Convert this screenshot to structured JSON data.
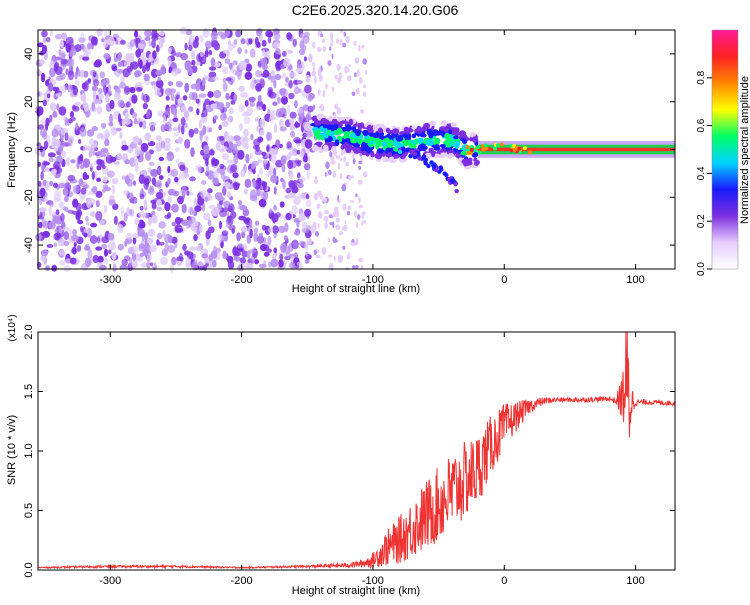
{
  "title": "C2E6.2025.320.14.20.G06",
  "chart_data": [
    {
      "type": "heatmap",
      "xlabel": "Height of straight line (km)",
      "ylabel": "Frequency (Hz)",
      "xlim": [
        -355,
        130
      ],
      "ylim": [
        -50,
        50
      ],
      "xticks": [
        -300,
        -200,
        -100,
        0,
        100
      ],
      "yticks": [
        -40,
        -20,
        0,
        20,
        40
      ],
      "xtick_labels": [
        "-300",
        "-200",
        "-100",
        "0",
        "100"
      ],
      "ytick_labels": [
        "-40",
        "-20",
        "0",
        "20",
        "40"
      ],
      "colorbar": {
        "label": "Normalized spectral amplitude",
        "range": [
          0,
          1
        ],
        "ticks": [
          0.0,
          0.2,
          0.4,
          0.6,
          0.8
        ],
        "tick_labels": [
          "0.0",
          "0.2",
          "0.4",
          "0.6",
          "0.8"
        ],
        "colors": [
          "#ffffff",
          "#e6ccff",
          "#7b2fe0",
          "#1a1aff",
          "#00d4ff",
          "#00ff66",
          "#ffff00",
          "#ff8800",
          "#ff2222",
          "#ff1a99"
        ]
      },
      "regions": [
        {
          "x": [
            -355,
            -145
          ],
          "freq": [
            -50,
            50
          ],
          "amplitude": 0.12,
          "pattern": "scattered noise"
        },
        {
          "x": [
            -145,
            -105
          ],
          "freq": [
            -50,
            50
          ],
          "amplitude": 0.05,
          "pattern": "sparse noise"
        },
        {
          "x": [
            -145,
            -20
          ],
          "freq": [
            -20,
            12
          ],
          "amplitude": 0.45,
          "pattern": "signal band"
        },
        {
          "x": [
            -20,
            130
          ],
          "freq": [
            -2,
            2
          ],
          "amplitude": 0.9,
          "pattern": "carrier line"
        }
      ],
      "track": {
        "x": [
          -145,
          -120,
          -100,
          -80,
          -60,
          -40,
          -30,
          -20,
          -10,
          0,
          20,
          50,
          85,
          100,
          130
        ],
        "freq": [
          7,
          6,
          3,
          2,
          4,
          4,
          0,
          0,
          1,
          1,
          0,
          0,
          0,
          0,
          0
        ],
        "branch": {
          "x": [
            -80,
            -65,
            -50,
            -40,
            -35
          ],
          "freq": [
            0,
            -3,
            -8,
            -13,
            -17
          ]
        }
      }
    },
    {
      "type": "line",
      "xlabel": "Height of straight line (km)",
      "ylabel": "SNR (10 * v/v)",
      "yunit": "(x10⁴)",
      "xlim": [
        -355,
        130
      ],
      "ylim": [
        0,
        2.0
      ],
      "xticks": [
        -300,
        -200,
        -100,
        0,
        100
      ],
      "yticks": [
        0.0,
        0.5,
        1.0,
        1.5,
        2.0
      ],
      "xtick_labels": [
        "-300",
        "-200",
        "-100",
        "0",
        "100"
      ],
      "ytick_labels": [
        "0.0",
        "0.5",
        "1.0",
        "1.5",
        "2.0"
      ],
      "color": "#ee3333",
      "series": [
        {
          "x": [
            -355,
            -300,
            -250,
            -200,
            -150,
            -120,
            -110,
            -100,
            -90,
            -80,
            -70,
            -60,
            -50,
            -40,
            -30,
            -20,
            -10,
            0,
            10,
            20,
            30,
            40,
            60,
            80,
            85,
            90,
            93,
            95,
            97,
            100,
            110,
            130
          ],
          "values": [
            0.02,
            0.03,
            0.03,
            0.02,
            0.03,
            0.04,
            0.05,
            0.08,
            0.18,
            0.25,
            0.35,
            0.45,
            0.55,
            0.65,
            0.75,
            0.85,
            1.05,
            1.2,
            1.3,
            1.38,
            1.42,
            1.43,
            1.43,
            1.44,
            1.42,
            1.45,
            1.6,
            1.4,
            1.42,
            1.41,
            1.41,
            1.4
          ],
          "noise": [
            0.005,
            0.01,
            0.01,
            0.005,
            0.01,
            0.02,
            0.03,
            0.06,
            0.15,
            0.2,
            0.25,
            0.3,
            0.32,
            0.35,
            0.33,
            0.3,
            0.25,
            0.2,
            0.12,
            0.06,
            0.03,
            0.02,
            0.02,
            0.02,
            0.03,
            0.2,
            0.6,
            0.5,
            0.15,
            0.03,
            0.02,
            0.02
          ]
        }
      ]
    }
  ]
}
